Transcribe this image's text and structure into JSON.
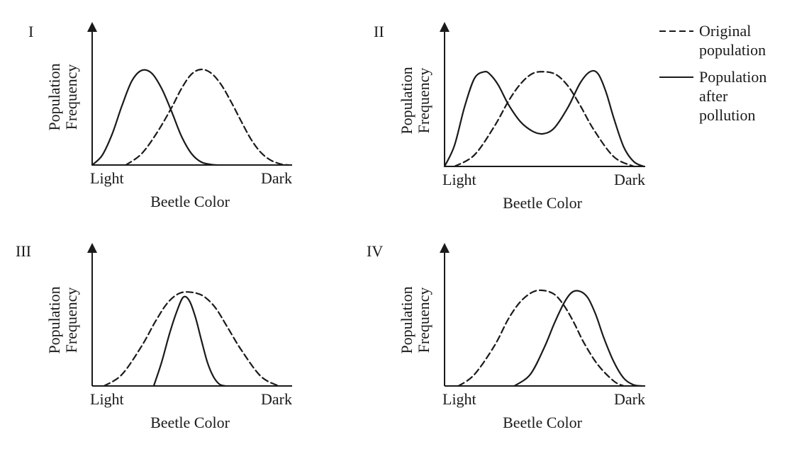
{
  "chart_data": [
    {
      "type": "line",
      "title": "I",
      "xlabel": "Beetle Color",
      "ylabel": [
        "Population",
        "Frequency"
      ],
      "x_tick_labels": [
        "Light",
        "Dark"
      ],
      "xlim": [
        0,
        1
      ],
      "ylim": [
        0,
        1
      ],
      "series": [
        {
          "style": "solid",
          "x": [
            0,
            0.05,
            0.1,
            0.15,
            0.2,
            0.25,
            0.3,
            0.35,
            0.4,
            0.45,
            0.5,
            0.55,
            0.6,
            0.63
          ],
          "y": [
            0,
            0.1,
            0.32,
            0.62,
            0.88,
            0.99,
            0.96,
            0.8,
            0.56,
            0.3,
            0.12,
            0.03,
            0.005,
            0
          ]
        },
        {
          "style": "dashed",
          "x": [
            0.17,
            0.25,
            0.33,
            0.4,
            0.45,
            0.5,
            0.55,
            0.6,
            0.65,
            0.7,
            0.75,
            0.8,
            0.85,
            0.9,
            0.95,
            0.99
          ],
          "y": [
            0,
            0.12,
            0.35,
            0.6,
            0.8,
            0.95,
            1.0,
            0.96,
            0.84,
            0.66,
            0.46,
            0.27,
            0.13,
            0.05,
            0.01,
            0
          ]
        }
      ]
    },
    {
      "type": "line",
      "title": "II",
      "xlabel": "Beetle Color",
      "ylabel": [
        "Population",
        "Frequency"
      ],
      "x_tick_labels": [
        "Light",
        "Dark"
      ],
      "xlim": [
        0,
        1
      ],
      "ylim": [
        0,
        1
      ],
      "series": [
        {
          "style": "solid",
          "x": [
            0,
            0.05,
            0.1,
            0.15,
            0.2,
            0.23,
            0.27,
            0.32,
            0.38,
            0.44,
            0.49,
            0.55,
            0.62,
            0.68,
            0.73,
            0.77,
            0.81,
            0.85,
            0.9,
            0.95,
            1.0
          ],
          "y": [
            0,
            0.22,
            0.62,
            0.92,
            0.99,
            0.96,
            0.85,
            0.65,
            0.47,
            0.37,
            0.34,
            0.4,
            0.62,
            0.87,
            0.99,
            0.97,
            0.78,
            0.5,
            0.2,
            0.05,
            0
          ]
        },
        {
          "style": "dashed",
          "x": [
            0.05,
            0.15,
            0.25,
            0.32,
            0.38,
            0.44,
            0.5,
            0.56,
            0.62,
            0.68,
            0.75,
            0.85,
            0.95
          ],
          "y": [
            0,
            0.12,
            0.42,
            0.68,
            0.86,
            0.97,
            0.99,
            0.96,
            0.84,
            0.64,
            0.38,
            0.1,
            0
          ]
        }
      ]
    },
    {
      "type": "line",
      "title": "III",
      "xlabel": "Beetle Color",
      "ylabel": [
        "Population",
        "Frequency"
      ],
      "x_tick_labels": [
        "Light",
        "Dark"
      ],
      "xlim": [
        0,
        1
      ],
      "ylim": [
        0,
        1
      ],
      "series": [
        {
          "style": "solid",
          "x": [
            0.31,
            0.35,
            0.39,
            0.43,
            0.46,
            0.49,
            0.52,
            0.55,
            0.58,
            0.61,
            0.64,
            0.67
          ],
          "y": [
            0,
            0.25,
            0.55,
            0.8,
            0.93,
            0.89,
            0.72,
            0.48,
            0.25,
            0.1,
            0.02,
            0
          ]
        },
        {
          "style": "dashed",
          "x": [
            0.06,
            0.15,
            0.25,
            0.32,
            0.38,
            0.44,
            0.5,
            0.56,
            0.62,
            0.68,
            0.75,
            0.85,
            0.94
          ],
          "y": [
            0,
            0.12,
            0.42,
            0.68,
            0.87,
            0.97,
            0.98,
            0.94,
            0.82,
            0.62,
            0.38,
            0.1,
            0
          ]
        }
      ]
    },
    {
      "type": "line",
      "title": "IV",
      "xlabel": "Beetle Color",
      "ylabel": [
        "Population",
        "Frequency"
      ],
      "x_tick_labels": [
        "Light",
        "Dark"
      ],
      "xlim": [
        0,
        1
      ],
      "ylim": [
        0,
        1
      ],
      "series": [
        {
          "style": "solid",
          "x": [
            0.35,
            0.43,
            0.5,
            0.55,
            0.6,
            0.64,
            0.68,
            0.72,
            0.76,
            0.8,
            0.85,
            0.9,
            0.95,
            0.99
          ],
          "y": [
            0,
            0.12,
            0.4,
            0.65,
            0.87,
            0.98,
            0.99,
            0.92,
            0.74,
            0.5,
            0.25,
            0.08,
            0.01,
            0
          ]
        },
        {
          "style": "dashed",
          "x": [
            0.07,
            0.15,
            0.25,
            0.32,
            0.38,
            0.44,
            0.49,
            0.55,
            0.6,
            0.65,
            0.7,
            0.77,
            0.85,
            0.9
          ],
          "y": [
            0,
            0.12,
            0.42,
            0.7,
            0.88,
            0.98,
            1.0,
            0.96,
            0.84,
            0.66,
            0.45,
            0.22,
            0.05,
            0
          ]
        }
      ]
    }
  ],
  "legend": {
    "placement": "top-right",
    "entries": [
      {
        "style": "dashed",
        "lines": [
          "Original",
          "population"
        ]
      },
      {
        "style": "solid",
        "lines": [
          "Population",
          "after",
          "pollution"
        ]
      }
    ]
  },
  "colors": {
    "ink": "#1a1a1a",
    "background": "#ffffff"
  }
}
